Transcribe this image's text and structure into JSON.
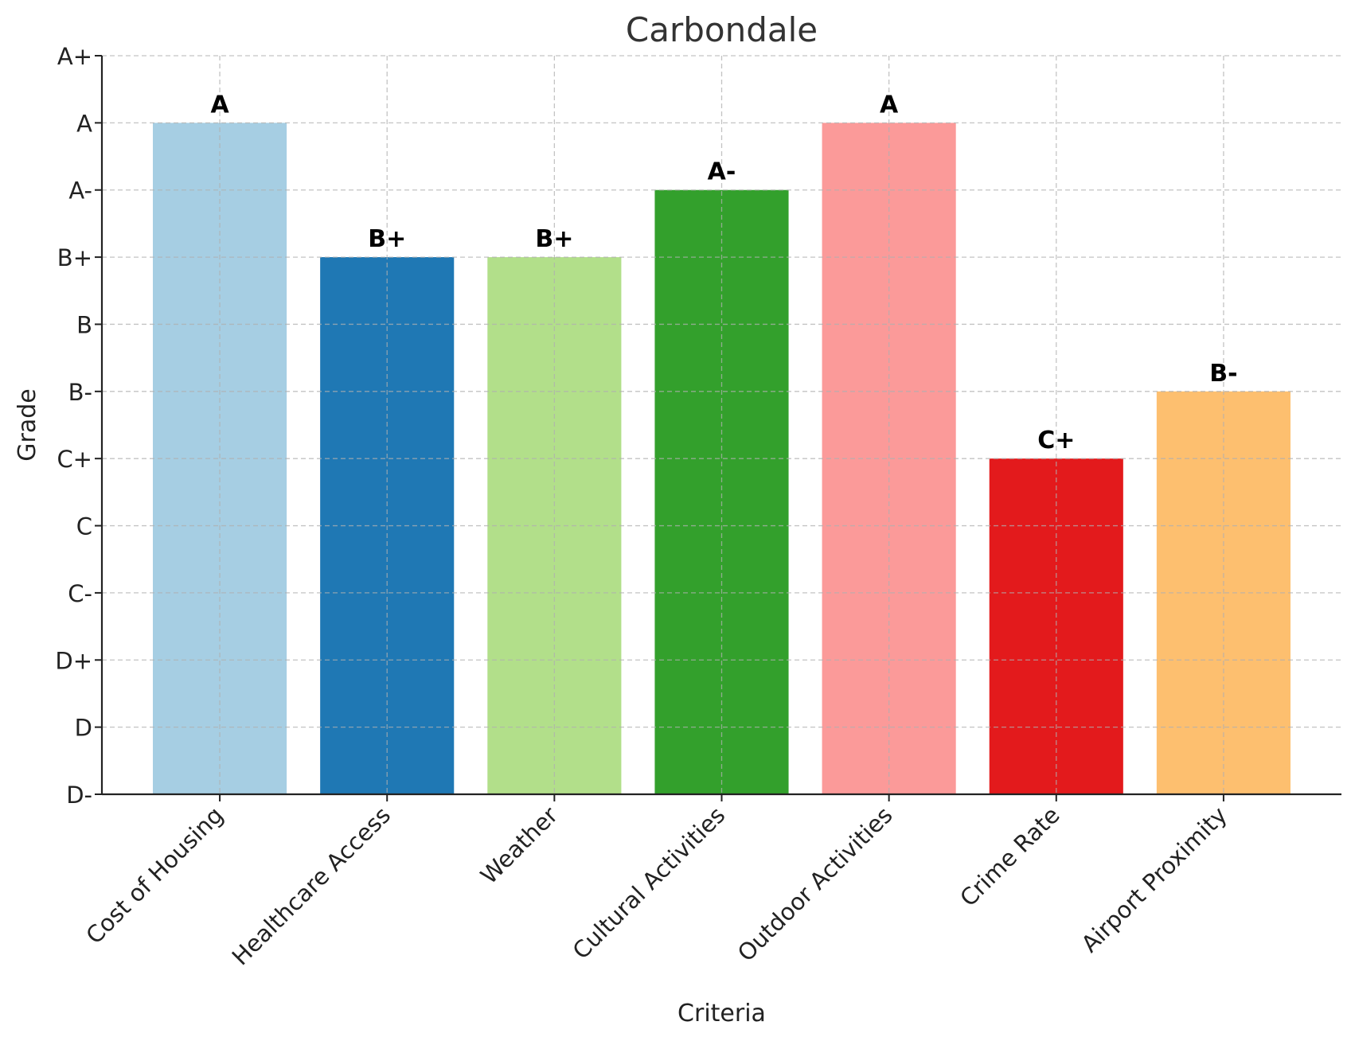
{
  "chart_data": {
    "type": "bar",
    "title": "Carbondale",
    "xlabel": "Criteria",
    "ylabel": "Grade",
    "categories": [
      "Cost of Housing",
      "Healthcare Access",
      "Weather",
      "Cultural Activities",
      "Outdoor Activities",
      "Crime Rate",
      "Airport Proximity"
    ],
    "grades": [
      "A",
      "B+",
      "B+",
      "A-",
      "A",
      "C+",
      "B-"
    ],
    "values": [
      10,
      8,
      8,
      9,
      10,
      5,
      6
    ],
    "ytick_labels": [
      "D-",
      "D",
      "D+",
      "C-",
      "C",
      "C+",
      "B-",
      "B",
      "B+",
      "A-",
      "A",
      "A+"
    ],
    "ylim": [
      0,
      11
    ],
    "colors": [
      "#a6cee3",
      "#1f78b4",
      "#b2df8a",
      "#33a02c",
      "#fb9a99",
      "#e31a1c",
      "#fdbf6f"
    ],
    "grid": true,
    "grid_style": "dashed"
  }
}
